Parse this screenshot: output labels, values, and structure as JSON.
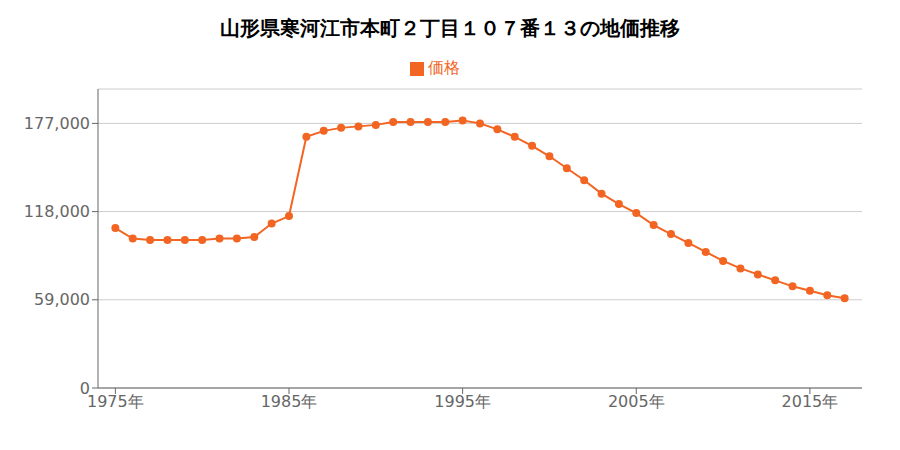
{
  "chart_data": {
    "type": "line",
    "title": "山形県寒河江市本町２丁目１０７番１３の地価推移",
    "x": [
      1975,
      1976,
      1977,
      1978,
      1979,
      1980,
      1981,
      1982,
      1983,
      1984,
      1985,
      1986,
      1987,
      1988,
      1989,
      1990,
      1991,
      1992,
      1993,
      1994,
      1995,
      1996,
      1997,
      1998,
      1999,
      2000,
      2001,
      2002,
      2003,
      2004,
      2005,
      2006,
      2007,
      2008,
      2009,
      2010,
      2011,
      2012,
      2013,
      2014,
      2015,
      2016,
      2017
    ],
    "series": [
      {
        "name": "価格",
        "color": "#f26522",
        "marker": "circle",
        "values": [
          107000,
          100000,
          99000,
          99000,
          99000,
          99000,
          100000,
          100000,
          101000,
          110000,
          115000,
          168000,
          172000,
          174000,
          175000,
          176000,
          178000,
          178000,
          178000,
          178000,
          179000,
          177000,
          173000,
          168000,
          162000,
          155000,
          147000,
          139000,
          130000,
          123000,
          117000,
          109000,
          103000,
          97000,
          91000,
          85000,
          80000,
          76000,
          72000,
          68000,
          65000,
          62000,
          60000
        ]
      }
    ],
    "xlim": [
      1974,
      2018
    ],
    "xticks": [
      {
        "value": 1975,
        "label": "1975年"
      },
      {
        "value": 1985,
        "label": "1985年"
      },
      {
        "value": 1995,
        "label": "1995年"
      },
      {
        "value": 2005,
        "label": "2005年"
      },
      {
        "value": 2015,
        "label": "2015年"
      }
    ],
    "ylim": [
      0,
      200000
    ],
    "yticks": [
      0,
      {
        "value": 59000,
        "label": "59,000"
      },
      {
        "value": 118000,
        "label": "118,000"
      },
      {
        "value": 177000,
        "label": "177,000"
      }
    ],
    "grid": "y",
    "legend": "top"
  }
}
